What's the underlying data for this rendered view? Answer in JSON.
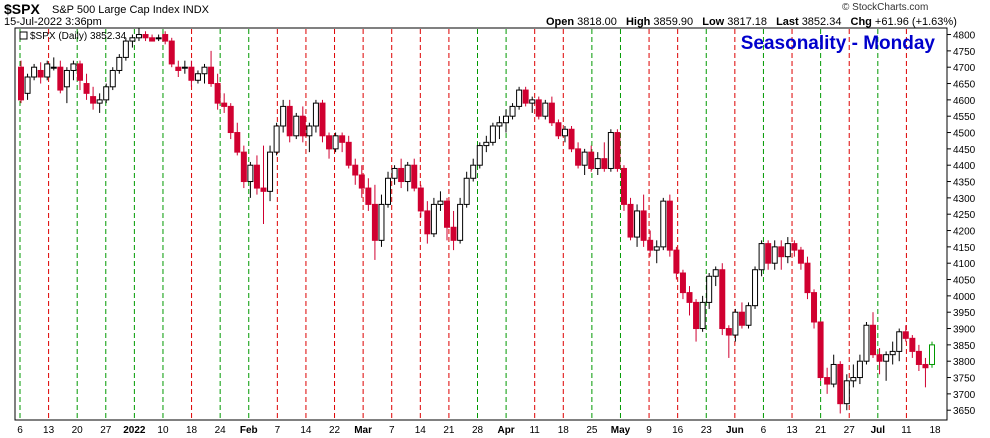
{
  "header": {
    "symbol": "$SPX",
    "name": "S&P 500 Large Cap Index",
    "exchange": "INDX",
    "timestamp": "15-Jul-2022 3:36pm",
    "brand": "© StockCharts.com",
    "open_label": "Open",
    "open": "3818.00",
    "high_label": "High",
    "high": "3859.90",
    "low_label": "Low",
    "low": "3817.18",
    "last_label": "Last",
    "last": "3852.34",
    "chg_label": "Chg",
    "chg": "+61.96 (+1.63%)"
  },
  "chart_data": {
    "type": "candlestick",
    "title": "Seasonality - Monday",
    "legend": "$SPX (Daily) 3852.34",
    "legend_position": "top-left",
    "ylim": [
      3620,
      4820
    ],
    "yticks": [
      3650,
      3700,
      3750,
      3800,
      3850,
      3900,
      3950,
      4000,
      4050,
      4100,
      4150,
      4200,
      4250,
      4300,
      4350,
      4400,
      4450,
      4500,
      4550,
      4600,
      4650,
      4700,
      4750,
      4800
    ],
    "x_labels": [
      {
        "label": "6",
        "bold": false
      },
      {
        "label": "13",
        "bold": false
      },
      {
        "label": "20",
        "bold": false
      },
      {
        "label": "27",
        "bold": false
      },
      {
        "label": "2022",
        "bold": true
      },
      {
        "label": "10",
        "bold": false
      },
      {
        "label": "18",
        "bold": false
      },
      {
        "label": "24",
        "bold": false
      },
      {
        "label": "Feb",
        "bold": true
      },
      {
        "label": "7",
        "bold": false
      },
      {
        "label": "14",
        "bold": false
      },
      {
        "label": "22",
        "bold": false
      },
      {
        "label": "Mar",
        "bold": true
      },
      {
        "label": "7",
        "bold": false
      },
      {
        "label": "14",
        "bold": false
      },
      {
        "label": "21",
        "bold": false
      },
      {
        "label": "28",
        "bold": false
      },
      {
        "label": "Apr",
        "bold": true
      },
      {
        "label": "11",
        "bold": false
      },
      {
        "label": "18",
        "bold": false
      },
      {
        "label": "25",
        "bold": false
      },
      {
        "label": "May",
        "bold": true
      },
      {
        "label": "9",
        "bold": false
      },
      {
        "label": "16",
        "bold": false
      },
      {
        "label": "23",
        "bold": false
      },
      {
        "label": "Jun",
        "bold": true
      },
      {
        "label": "6",
        "bold": false
      },
      {
        "label": "13",
        "bold": false
      },
      {
        "label": "21",
        "bold": false
      },
      {
        "label": "27",
        "bold": false
      },
      {
        "label": "Jul",
        "bold": true
      },
      {
        "label": "11",
        "bold": false
      },
      {
        "label": "18",
        "bold": false
      }
    ],
    "monday_markers": [
      {
        "date": "Dec 6",
        "direction": "up"
      },
      {
        "date": "Dec 13",
        "direction": "down"
      },
      {
        "date": "Dec 20",
        "direction": "up"
      },
      {
        "date": "Dec 27",
        "direction": "up"
      },
      {
        "date": "Jan 3",
        "direction": "up"
      },
      {
        "date": "Jan 10",
        "direction": "up"
      },
      {
        "date": "Jan 18",
        "direction": "down"
      },
      {
        "date": "Jan 24",
        "direction": "up"
      },
      {
        "date": "Jan 31",
        "direction": "up"
      },
      {
        "date": "Feb 7",
        "direction": "down"
      },
      {
        "date": "Feb 14",
        "direction": "down"
      },
      {
        "date": "Feb 22",
        "direction": "down"
      },
      {
        "date": "Feb 28",
        "direction": "down"
      },
      {
        "date": "Mar 7",
        "direction": "down"
      },
      {
        "date": "Mar 14",
        "direction": "down"
      },
      {
        "date": "Mar 21",
        "direction": "down"
      },
      {
        "date": "Mar 28",
        "direction": "up"
      },
      {
        "date": "Apr 4",
        "direction": "up"
      },
      {
        "date": "Apr 11",
        "direction": "down"
      },
      {
        "date": "Apr 18",
        "direction": "down"
      },
      {
        "date": "Apr 25",
        "direction": "up"
      },
      {
        "date": "May 2",
        "direction": "up"
      },
      {
        "date": "May 9",
        "direction": "down"
      },
      {
        "date": "May 16",
        "direction": "down"
      },
      {
        "date": "May 23",
        "direction": "up"
      },
      {
        "date": "May 31",
        "direction": "down"
      },
      {
        "date": "Jun 6",
        "direction": "up"
      },
      {
        "date": "Jun 13",
        "direction": "down"
      },
      {
        "date": "Jun 21",
        "direction": "up"
      },
      {
        "date": "Jun 27",
        "direction": "down"
      },
      {
        "date": "Jul 5",
        "direction": "up"
      },
      {
        "date": "Jul 11",
        "direction": "down"
      }
    ],
    "colors": {
      "up_candle": "#000000",
      "down_candle": "#d00030",
      "up_marker": "#009900",
      "down_marker": "#dd0000",
      "title": "#0000cc",
      "last_candle": "#009900"
    },
    "candles": [
      [
        4700,
        4720,
        4590,
        4600
      ],
      [
        4620,
        4680,
        4600,
        4670
      ],
      [
        4670,
        4710,
        4660,
        4700
      ],
      [
        4690,
        4715,
        4650,
        4670
      ],
      [
        4670,
        4720,
        4660,
        4710
      ],
      [
        4700,
        4730,
        4690,
        4700
      ],
      [
        4700,
        4720,
        4620,
        4630
      ],
      [
        4640,
        4700,
        4590,
        4690
      ],
      [
        4690,
        4720,
        4660,
        4710
      ],
      [
        4710,
        4720,
        4630,
        4660
      ],
      [
        4650,
        4680,
        4600,
        4620
      ],
      [
        4610,
        4640,
        4570,
        4590
      ],
      [
        4590,
        4620,
        4560,
        4600
      ],
      [
        4600,
        4650,
        4590,
        4640
      ],
      [
        4640,
        4700,
        4630,
        4690
      ],
      [
        4690,
        4740,
        4680,
        4730
      ],
      [
        4730,
        4790,
        4720,
        4780
      ],
      [
        4780,
        4800,
        4760,
        4790
      ],
      [
        4790,
        4820,
        4780,
        4800
      ],
      [
        4800,
        4810,
        4780,
        4790
      ],
      [
        4790,
        4800,
        4780,
        4780
      ],
      [
        4790,
        4800,
        4780,
        4790
      ],
      [
        4800,
        4810,
        4770,
        4780
      ],
      [
        4780,
        4790,
        4700,
        4710
      ],
      [
        4700,
        4720,
        4670,
        4690
      ],
      [
        4700,
        4720,
        4680,
        4700
      ],
      [
        4700,
        4720,
        4640,
        4660
      ],
      [
        4660,
        4690,
        4650,
        4680
      ],
      [
        4680,
        4710,
        4650,
        4700
      ],
      [
        4700,
        4750,
        4640,
        4650
      ],
      [
        4650,
        4680,
        4570,
        4590
      ],
      [
        4590,
        4620,
        4560,
        4580
      ],
      [
        4580,
        4590,
        4480,
        4500
      ],
      [
        4500,
        4530,
        4430,
        4440
      ],
      [
        4440,
        4460,
        4330,
        4350
      ],
      [
        4350,
        4410,
        4300,
        4400
      ],
      [
        4400,
        4430,
        4310,
        4330
      ],
      [
        4330,
        4460,
        4220,
        4320
      ],
      [
        4320,
        4460,
        4290,
        4440
      ],
      [
        4440,
        4530,
        4430,
        4520
      ],
      [
        4520,
        4600,
        4500,
        4580
      ],
      [
        4580,
        4600,
        4470,
        4490
      ],
      [
        4490,
        4560,
        4480,
        4550
      ],
      [
        4550,
        4580,
        4470,
        4490
      ],
      [
        4490,
        4530,
        4440,
        4520
      ],
      [
        4520,
        4600,
        4500,
        4590
      ],
      [
        4590,
        4600,
        4470,
        4490
      ],
      [
        4490,
        4500,
        4420,
        4450
      ],
      [
        4450,
        4500,
        4440,
        4490
      ],
      [
        4490,
        4500,
        4440,
        4470
      ],
      [
        4470,
        4490,
        4390,
        4400
      ],
      [
        4400,
        4420,
        4340,
        4370
      ],
      [
        4370,
        4400,
        4300,
        4330
      ],
      [
        4330,
        4360,
        4260,
        4280
      ],
      [
        4280,
        4340,
        4110,
        4170
      ],
      [
        4170,
        4310,
        4150,
        4280
      ],
      [
        4280,
        4380,
        4270,
        4360
      ],
      [
        4360,
        4400,
        4340,
        4390
      ],
      [
        4390,
        4420,
        4330,
        4350
      ],
      [
        4350,
        4410,
        4320,
        4400
      ],
      [
        4400,
        4420,
        4320,
        4330
      ],
      [
        4330,
        4340,
        4240,
        4260
      ],
      [
        4260,
        4290,
        4160,
        4190
      ],
      [
        4190,
        4300,
        4180,
        4280
      ],
      [
        4280,
        4320,
        4260,
        4290
      ],
      [
        4290,
        4300,
        4170,
        4210
      ],
      [
        4210,
        4260,
        4140,
        4170
      ],
      [
        4170,
        4300,
        4160,
        4280
      ],
      [
        4280,
        4380,
        4270,
        4360
      ],
      [
        4360,
        4420,
        4350,
        4400
      ],
      [
        4400,
        4470,
        4390,
        4460
      ],
      [
        4460,
        4490,
        4440,
        4470
      ],
      [
        4470,
        4530,
        4460,
        4520
      ],
      [
        4520,
        4550,
        4480,
        4530
      ],
      [
        4530,
        4570,
        4500,
        4550
      ],
      [
        4550,
        4590,
        4540,
        4580
      ],
      [
        4580,
        4640,
        4570,
        4630
      ],
      [
        4630,
        4640,
        4580,
        4590
      ],
      [
        4590,
        4610,
        4560,
        4600
      ],
      [
        4600,
        4610,
        4540,
        4550
      ],
      [
        4550,
        4600,
        4540,
        4590
      ],
      [
        4590,
        4610,
        4520,
        4530
      ],
      [
        4530,
        4540,
        4480,
        4490
      ],
      [
        4490,
        4520,
        4470,
        4510
      ],
      [
        4510,
        4520,
        4440,
        4450
      ],
      [
        4450,
        4470,
        4390,
        4400
      ],
      [
        4400,
        4450,
        4370,
        4440
      ],
      [
        4440,
        4460,
        4380,
        4390
      ],
      [
        4390,
        4440,
        4370,
        4420
      ],
      [
        4420,
        4470,
        4380,
        4390
      ],
      [
        4390,
        4510,
        4380,
        4500
      ],
      [
        4500,
        4510,
        4380,
        4390
      ],
      [
        4390,
        4400,
        4260,
        4280
      ],
      [
        4280,
        4300,
        4170,
        4180
      ],
      [
        4180,
        4280,
        4150,
        4260
      ],
      [
        4260,
        4310,
        4150,
        4170
      ],
      [
        4170,
        4200,
        4120,
        4140
      ],
      [
        4140,
        4170,
        4100,
        4150
      ],
      [
        4150,
        4300,
        4140,
        4290
      ],
      [
        4290,
        4310,
        4120,
        4140
      ],
      [
        4140,
        4150,
        4050,
        4070
      ],
      [
        4070,
        4080,
        3990,
        4010
      ],
      [
        4010,
        4030,
        3940,
        3980
      ],
      [
        3980,
        3990,
        3860,
        3900
      ],
      [
        3900,
        4000,
        3890,
        3980
      ],
      [
        3980,
        4070,
        3960,
        4060
      ],
      [
        4060,
        4090,
        4030,
        4080
      ],
      [
        4080,
        4100,
        3880,
        3900
      ],
      [
        3900,
        3910,
        3810,
        3880
      ],
      [
        3880,
        3960,
        3860,
        3950
      ],
      [
        3950,
        3980,
        3900,
        3910
      ],
      [
        3910,
        3980,
        3900,
        3970
      ],
      [
        3970,
        4090,
        3960,
        4080
      ],
      [
        4080,
        4170,
        4060,
        4160
      ],
      [
        4160,
        4170,
        4080,
        4100
      ],
      [
        4100,
        4170,
        4080,
        4150
      ],
      [
        4150,
        4170,
        4080,
        4120
      ],
      [
        4120,
        4180,
        4100,
        4160
      ],
      [
        4160,
        4170,
        4120,
        4140
      ],
      [
        4140,
        4150,
        4080,
        4100
      ],
      [
        4100,
        4120,
        3990,
        4010
      ],
      [
        4010,
        4020,
        3900,
        3920
      ],
      [
        3920,
        3920,
        3740,
        3750
      ],
      [
        3750,
        3780,
        3700,
        3730
      ],
      [
        3730,
        3820,
        3720,
        3790
      ],
      [
        3790,
        3800,
        3640,
        3670
      ],
      [
        3670,
        3760,
        3650,
        3740
      ],
      [
        3740,
        3790,
        3720,
        3750
      ],
      [
        3750,
        3820,
        3730,
        3800
      ],
      [
        3800,
        3920,
        3790,
        3910
      ],
      [
        3910,
        3950,
        3810,
        3820
      ],
      [
        3820,
        3840,
        3760,
        3800
      ],
      [
        3800,
        3830,
        3740,
        3820
      ],
      [
        3820,
        3860,
        3790,
        3830
      ],
      [
        3830,
        3900,
        3800,
        3890
      ],
      [
        3890,
        3910,
        3860,
        3870
      ],
      [
        3870,
        3880,
        3810,
        3830
      ],
      [
        3830,
        3850,
        3770,
        3790
      ],
      [
        3790,
        3810,
        3720,
        3780
      ],
      [
        3790,
        3860,
        3780,
        3850
      ]
    ]
  }
}
